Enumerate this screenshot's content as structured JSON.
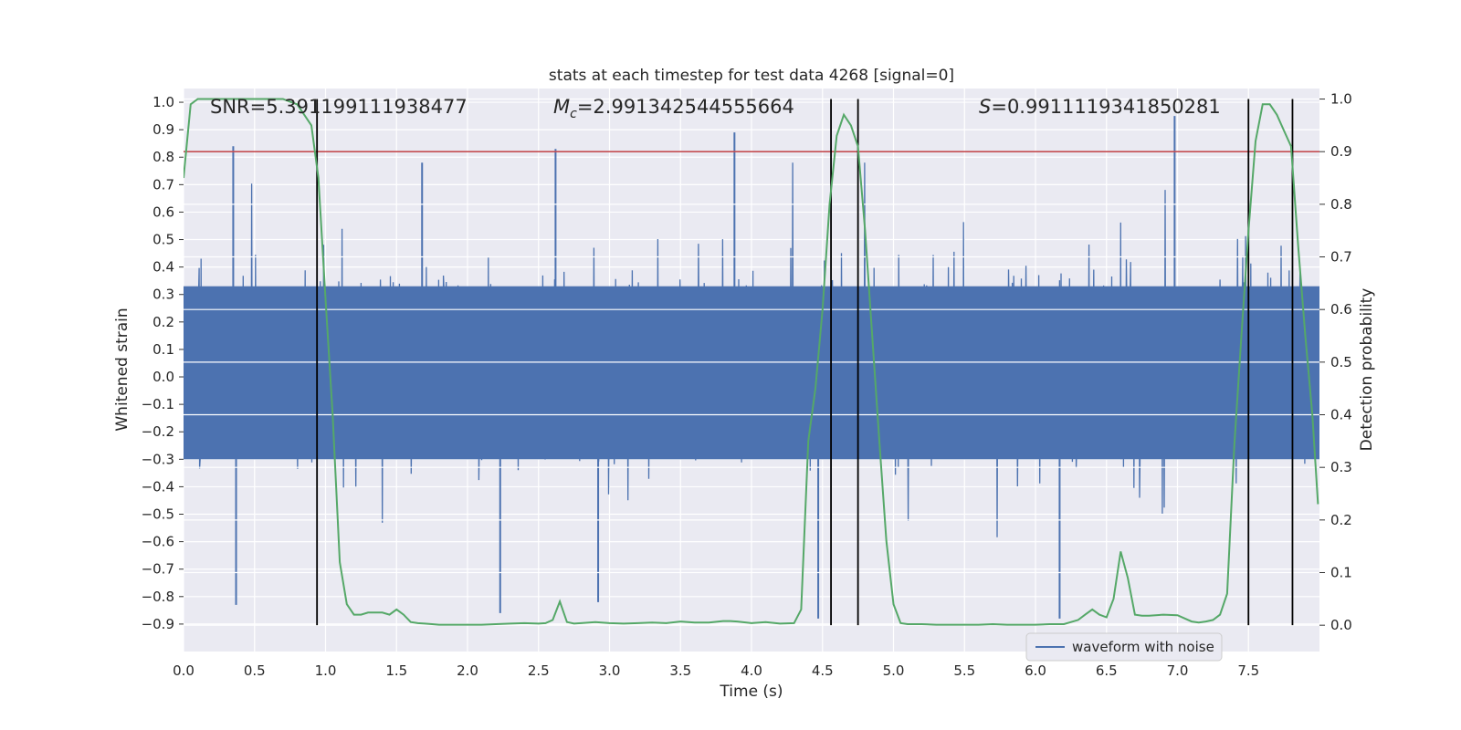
{
  "chart_data": {
    "type": "line",
    "title": "stats at each timestep for test data 4268 [signal=0]",
    "xlabel": "Time (s)",
    "ylabel": "Whitened strain",
    "y2label": "Detection probability",
    "xlim": [
      0.0,
      8.0
    ],
    "ylim": [
      -1.0,
      1.05
    ],
    "y2lim": [
      -0.05,
      1.02
    ],
    "x_ticks": [
      0.0,
      0.5,
      1.0,
      1.5,
      2.0,
      2.5,
      3.0,
      3.5,
      4.0,
      4.5,
      5.0,
      5.5,
      6.0,
      6.5,
      7.0,
      7.5
    ],
    "x_tick_labels": [
      "0.0",
      "0.5",
      "1.0",
      "1.5",
      "2.0",
      "2.5",
      "3.0",
      "3.5",
      "4.0",
      "4.5",
      "5.0",
      "5.5",
      "6.0",
      "6.5",
      "7.0",
      "7.5"
    ],
    "y_ticks": [
      1.0,
      0.9,
      0.8,
      0.7,
      0.6,
      0.5,
      0.4,
      0.3,
      0.2,
      0.1,
      0.0,
      -0.1,
      -0.2,
      -0.3,
      -0.4,
      -0.5,
      -0.6,
      -0.7,
      -0.8,
      -0.9
    ],
    "y_tick_labels": [
      "1.0",
      "0.9",
      "0.8",
      "0.7",
      "0.6",
      "0.5",
      "0.4",
      "0.3",
      "0.2",
      "0.1",
      "0.0",
      "−0.1",
      "−0.2",
      "−0.3",
      "−0.4",
      "−0.5",
      "−0.6",
      "−0.7",
      "−0.8",
      "−0.9"
    ],
    "y2_ticks": [
      1.0,
      0.9,
      0.8,
      0.7,
      0.6,
      0.5,
      0.4,
      0.3,
      0.2,
      0.1,
      0.0
    ],
    "y2_tick_labels": [
      "1.0",
      "0.9",
      "0.8",
      "0.7",
      "0.6",
      "0.5",
      "0.4",
      "0.3",
      "0.2",
      "0.1",
      "0.0"
    ],
    "grid": true,
    "annotations": {
      "snr": "SNR=5.391199111938477",
      "mc_symbol": "M",
      "mc_sub": "c",
      "mc_value": "=2.991342544555664",
      "s_symbol": "S",
      "s_value": "=0.9911119341850281"
    },
    "threshold": {
      "value": 0.9,
      "axis": "y2",
      "color": "#c44e52"
    },
    "vertical_lines": [
      0.94,
      4.56,
      4.75,
      7.5,
      7.81
    ],
    "legend": {
      "position": "lower-right",
      "entries": [
        {
          "label": "waveform with noise",
          "color": "#4c72b0"
        }
      ]
    },
    "series": [
      {
        "name": "waveform with noise",
        "color": "#4c72b0",
        "axis": "y",
        "kind": "noise",
        "typical_range": [
          -0.35,
          0.45
        ],
        "peaks": [
          {
            "x": 0.35,
            "y": 0.84
          },
          {
            "x": 1.68,
            "y": 0.78
          },
          {
            "x": 2.62,
            "y": 0.83
          },
          {
            "x": 3.88,
            "y": 0.89
          },
          {
            "x": 6.98,
            "y": 0.95
          },
          {
            "x": 0.37,
            "y": -0.83
          },
          {
            "x": 2.23,
            "y": -0.86
          },
          {
            "x": 2.92,
            "y": -0.82
          },
          {
            "x": 4.47,
            "y": -0.88
          },
          {
            "x": 6.17,
            "y": -0.88
          }
        ]
      },
      {
        "name": "detection probability",
        "color": "#55a868",
        "axis": "y2",
        "x": [
          0.0,
          0.05,
          0.1,
          0.2,
          0.3,
          0.4,
          0.5,
          0.6,
          0.7,
          0.75,
          0.8,
          0.85,
          0.9,
          0.95,
          1.0,
          1.05,
          1.1,
          1.15,
          1.2,
          1.25,
          1.3,
          1.35,
          1.4,
          1.45,
          1.5,
          1.55,
          1.6,
          1.65,
          1.7,
          1.8,
          1.9,
          2.0,
          2.1,
          2.2,
          2.3,
          2.4,
          2.5,
          2.55,
          2.6,
          2.65,
          2.7,
          2.75,
          2.8,
          2.9,
          3.0,
          3.1,
          3.2,
          3.3,
          3.4,
          3.5,
          3.6,
          3.7,
          3.8,
          3.85,
          3.9,
          4.0,
          4.1,
          4.2,
          4.3,
          4.35,
          4.4,
          4.45,
          4.5,
          4.55,
          4.6,
          4.65,
          4.7,
          4.75,
          4.8,
          4.85,
          4.9,
          4.95,
          5.0,
          5.05,
          5.1,
          5.2,
          5.3,
          5.4,
          5.5,
          5.6,
          5.7,
          5.8,
          5.9,
          6.0,
          6.1,
          6.2,
          6.3,
          6.35,
          6.4,
          6.45,
          6.5,
          6.55,
          6.6,
          6.65,
          6.7,
          6.75,
          6.8,
          6.9,
          7.0,
          7.1,
          7.15,
          7.2,
          7.25,
          7.3,
          7.35,
          7.4,
          7.45,
          7.5,
          7.55,
          7.6,
          7.65,
          7.7,
          7.75,
          7.8,
          7.85,
          7.9,
          7.95,
          7.99
        ],
        "y": [
          0.85,
          0.99,
          1.0,
          1.0,
          1.0,
          1.0,
          1.0,
          1.0,
          1.0,
          0.995,
          0.99,
          0.97,
          0.95,
          0.85,
          0.62,
          0.4,
          0.12,
          0.04,
          0.02,
          0.02,
          0.024,
          0.024,
          0.024,
          0.02,
          0.03,
          0.02,
          0.006,
          0.004,
          0.003,
          0.001,
          0.001,
          0.001,
          0.001,
          0.002,
          0.003,
          0.004,
          0.003,
          0.004,
          0.01,
          0.045,
          0.006,
          0.003,
          0.004,
          0.006,
          0.004,
          0.003,
          0.004,
          0.005,
          0.004,
          0.007,
          0.005,
          0.005,
          0.008,
          0.008,
          0.007,
          0.004,
          0.006,
          0.003,
          0.004,
          0.03,
          0.35,
          0.45,
          0.6,
          0.8,
          0.93,
          0.97,
          0.95,
          0.91,
          0.75,
          0.55,
          0.35,
          0.16,
          0.04,
          0.004,
          0.002,
          0.002,
          0.001,
          0.001,
          0.001,
          0.001,
          0.002,
          0.001,
          0.001,
          0.001,
          0.002,
          0.002,
          0.01,
          0.02,
          0.03,
          0.02,
          0.015,
          0.05,
          0.14,
          0.09,
          0.02,
          0.018,
          0.018,
          0.02,
          0.019,
          0.007,
          0.005,
          0.007,
          0.01,
          0.02,
          0.06,
          0.34,
          0.55,
          0.75,
          0.92,
          0.99,
          0.99,
          0.97,
          0.94,
          0.91,
          0.72,
          0.55,
          0.4,
          0.23
        ]
      }
    ]
  }
}
